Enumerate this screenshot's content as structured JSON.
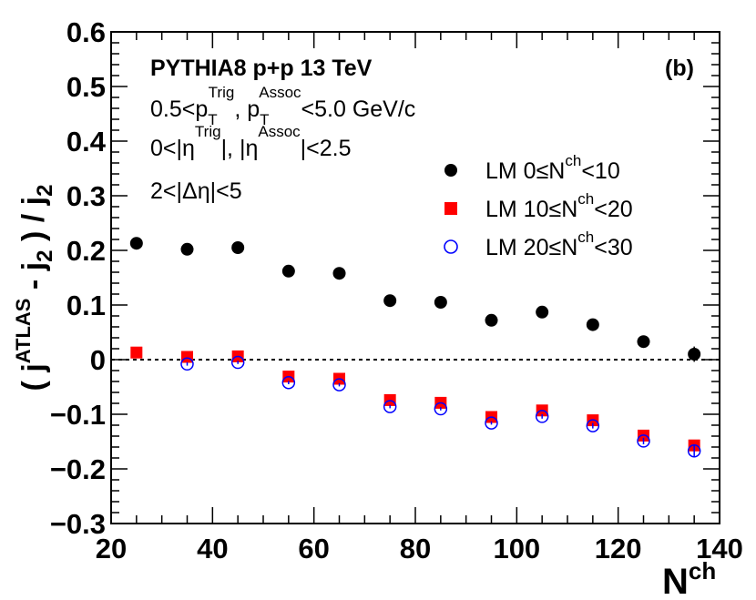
{
  "chart_data": {
    "type": "scatter",
    "title": "",
    "xlabel": "N",
    "xlabel_sup": "ch",
    "ylabel": "( j^ATLAS - j_2 ) / j_2",
    "xlim": [
      20,
      140
    ],
    "ylim": [
      -0.3,
      0.6
    ],
    "x_ticks": [
      20,
      40,
      60,
      80,
      100,
      120,
      140
    ],
    "y_ticks": [
      -0.3,
      -0.2,
      -0.1,
      0,
      0.1,
      0.2,
      0.3,
      0.4,
      0.5,
      0.6
    ],
    "x_tick_labels": [
      "20",
      "40",
      "60",
      "80",
      "100",
      "120",
      "140"
    ],
    "y_tick_labels": [
      "−0.3",
      "−0.2",
      "−0.1",
      "0",
      "0.1",
      "0.2",
      "0.3",
      "0.4",
      "0.5",
      "0.6"
    ],
    "reference_line": 0,
    "annotations": {
      "generator": "PYTHIA8 p+p 13 TeV",
      "panel": "(b)",
      "pt_cut": "0.5<p_T^Trig, p_T^Assoc<5.0 GeV/c",
      "eta_cut": "0<|η^Trig|, |η^Assoc|<2.5",
      "deta_cut": "2<|Δη|<5"
    },
    "series": [
      {
        "name": "LM 0≤N^ch<10",
        "marker": "filled-circle",
        "color": "#000000",
        "x": [
          25,
          35,
          45,
          55,
          65,
          75,
          85,
          95,
          105,
          115,
          125,
          135
        ],
        "y": [
          0.213,
          0.202,
          0.205,
          0.162,
          0.158,
          0.108,
          0.105,
          0.072,
          0.087,
          0.064,
          0.033,
          0.01
        ],
        "yerr": [
          0.004,
          0.004,
          0.004,
          0.004,
          0.004,
          0.004,
          0.004,
          0.004,
          0.005,
          0.006,
          0.01,
          0.014
        ]
      },
      {
        "name": "LM 10≤N^ch<20",
        "marker": "filled-square",
        "color": "#ff0000",
        "x": [
          25,
          35,
          45,
          55,
          65,
          75,
          85,
          95,
          105,
          115,
          125,
          135
        ],
        "y": [
          0.013,
          0.005,
          0.006,
          -0.031,
          -0.035,
          -0.074,
          -0.079,
          -0.105,
          -0.093,
          -0.111,
          -0.139,
          -0.157
        ],
        "yerr": [
          0.003,
          0.003,
          0.003,
          0.003,
          0.003,
          0.003,
          0.003,
          0.003,
          0.004,
          0.005,
          0.006,
          0.01
        ]
      },
      {
        "name": "LM 20≤N^ch<30",
        "marker": "open-circle",
        "color": "#0000ff",
        "x": [
          25,
          35,
          45,
          55,
          65,
          75,
          85,
          95,
          105,
          115,
          125,
          135
        ],
        "y": [
          null,
          -0.008,
          -0.005,
          -0.042,
          -0.046,
          -0.086,
          -0.09,
          -0.116,
          -0.104,
          -0.121,
          -0.149,
          -0.167
        ],
        "yerr": [
          0,
          0.003,
          0.003,
          0.003,
          0.003,
          0.003,
          0.003,
          0.003,
          0.004,
          0.005,
          0.006,
          0.012
        ]
      }
    ]
  },
  "legend_labels": [
    {
      "prefix": "LM  0≤N",
      "sup": "ch",
      "suffix": "<10"
    },
    {
      "prefix": "LM 10≤N",
      "sup": "ch",
      "suffix": "<20"
    },
    {
      "prefix": "LM 20≤N",
      "sup": "ch",
      "suffix": "<30"
    }
  ],
  "text": {
    "generator": "PYTHIA8 p+p 13 TeV",
    "panel": "(b)",
    "pt_a": "0.5<p",
    "pt_sub": "T",
    "pt_sup": "Trig",
    "pt_b": ", p",
    "pt_sub2": "T",
    "pt_sup2": "Assoc",
    "pt_c": "<5.0 GeV/c",
    "eta_a": "0<|η",
    "eta_sup": "Trig",
    "eta_b": "|, |η",
    "eta_sup2": "Assoc",
    "eta_c": "|<2.5",
    "deta": "2<|Δη|<5",
    "xlabel": "N",
    "xlabel_sup": "ch",
    "y_open": "( j",
    "y_sup": "ATLAS",
    "y_mid": " - j",
    "y_sub": "2",
    "y_close": " ) / j",
    "y_sub2": "2"
  }
}
